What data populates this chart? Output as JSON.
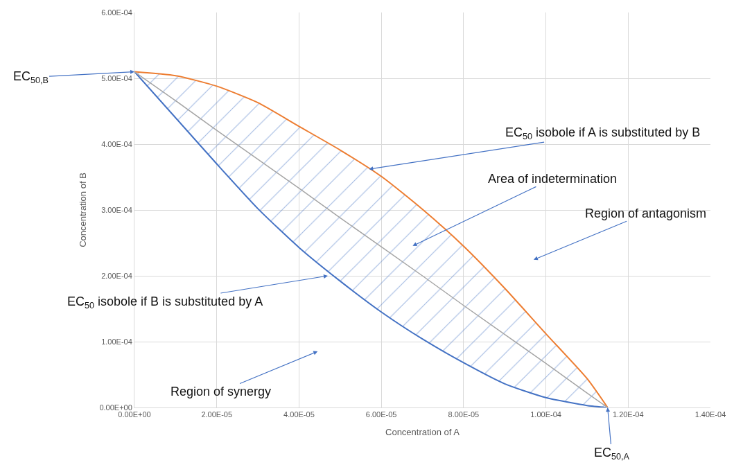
{
  "chart_data": {
    "type": "line",
    "xlabel": "Concentration of A",
    "ylabel": "Concentration of B",
    "xlim": [
      0,
      0.00014
    ],
    "ylim": [
      0,
      0.0006
    ],
    "xticks": [
      {
        "value": 0,
        "label": "0.00E+00"
      },
      {
        "value": 2e-05,
        "label": "2.00E-05"
      },
      {
        "value": 4e-05,
        "label": "4.00E-05"
      },
      {
        "value": 6e-05,
        "label": "6.00E-05"
      },
      {
        "value": 8e-05,
        "label": "8.00E-05"
      },
      {
        "value": 0.0001,
        "label": "1.00E-04"
      },
      {
        "value": 0.00012,
        "label": "1.20E-04"
      },
      {
        "value": 0.00014,
        "label": "1.40E-04"
      }
    ],
    "yticks": [
      {
        "value": 0,
        "label": "0.00E+00"
      },
      {
        "value": 0.0001,
        "label": "1.00E-04"
      },
      {
        "value": 0.0002,
        "label": "2.00E-04"
      },
      {
        "value": 0.0003,
        "label": "3.00E-04"
      },
      {
        "value": 0.0004,
        "label": "4.00E-04"
      },
      {
        "value": 0.0005,
        "label": "5.00E-04"
      },
      {
        "value": 0.0006,
        "label": "6.00E-04"
      }
    ],
    "x": [
      0,
      1e-05,
      2e-05,
      3e-05,
      4e-05,
      5e-05,
      6e-05,
      7e-05,
      8e-05,
      9e-05,
      0.0001,
      0.00011,
      0.000115
    ],
    "series": [
      {
        "color": "#4472c4",
        "values": [
          0.00051,
          0.00044,
          0.00037,
          0.000302,
          0.000243,
          0.000192,
          0.000145,
          0.000104,
          6.8e-05,
          3.6e-05,
          1.5e-05,
          3e-06,
          0
        ]
      },
      {
        "color": "#ed7d31",
        "values": [
          0.00051,
          0.000504,
          0.000488,
          0.000463,
          0.000427,
          0.000391,
          0.000351,
          0.000301,
          0.000245,
          0.000181,
          0.000112,
          4.4e-05,
          0
        ]
      },
      {
        "color": "#a5a5a5",
        "values": [
          0.00051,
          0.000466,
          0.000421,
          0.000377,
          0.000333,
          0.000288,
          0.000244,
          0.0002,
          0.000155,
          0.000111,
          6.7e-05,
          2.2e-05,
          0
        ],
        "lower": [
          0.00051,
          0.00044,
          0.00037,
          0.000302,
          0.000243,
          0.000192,
          0.000145,
          0.000104,
          6.8e-05,
          3.6e-05,
          1.5e-05,
          3e-06,
          0
        ],
        "upper": [
          0.00051,
          0.000504,
          0.000488,
          0.000463,
          0.000427,
          0.000391,
          0.000351,
          0.000301,
          0.000245,
          0.000181,
          0.000112,
          4.4e-05,
          0
        ]
      }
    ],
    "annotations": [
      {
        "text": "EC$_{50,B}$",
        "x": 0,
        "y": 0.00051
      },
      {
        "text": "EC$_{50,A}$",
        "x": 0.000115,
        "y": 0
      },
      {
        "text": "EC$_{50}$ isobole if A is substituted by B",
        "x": 5.7e-05,
        "y": 0.000362
      },
      "Area of indetermination",
      "Region of antagonism",
      {
        "text": "EC$_{50}$ isobole if B is substituted by A",
        "x": 4.7e-05,
        "y": 0.0002
      },
      "Region of synergy"
    ],
    "grid": true,
    "marker": "none",
    "line_style": "solid"
  }
}
